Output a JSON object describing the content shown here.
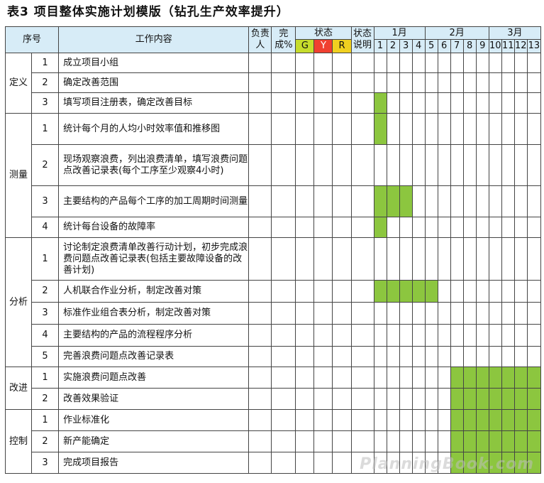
{
  "title": "表3 项目整体实施计划模版（钻孔生产效率提升）",
  "header": {
    "seq": "序号",
    "content": "工作内容",
    "owner": "负责人",
    "done": "完成%",
    "status": "状态",
    "status_g": "G",
    "status_y": "Y",
    "status_r": "R",
    "status_note": "状态说明",
    "months": [
      "1月",
      "2月",
      "3月"
    ],
    "weeks": [
      "1",
      "2",
      "3",
      "4",
      "5",
      "6",
      "7",
      "8",
      "9",
      "10",
      "11",
      "12",
      "13"
    ]
  },
  "phases": [
    {
      "name": "定义",
      "tasks": [
        {
          "no": "1",
          "text": "成立项目小组",
          "weeks": []
        },
        {
          "no": "2",
          "text": "确定改善范围",
          "weeks": []
        },
        {
          "no": "3",
          "text": "填写项目注册表，确定改善目标",
          "weeks": [
            1
          ]
        }
      ]
    },
    {
      "name": "测量",
      "tasks": [
        {
          "no": "1",
          "text": "统计每个月的人均小时效率值和推移图",
          "weeks": [
            1
          ]
        },
        {
          "no": "2",
          "text": "现场观察浪费，列出浪费清单，填写浪费问题点改善记录表(每个工序至少观察4小时)",
          "weeks": []
        },
        {
          "no": "3",
          "text": "主要结构的产品每个工序的加工周期时间测量",
          "weeks": [
            1,
            2,
            3
          ]
        },
        {
          "no": "4",
          "text": "统计每台设备的故障率",
          "weeks": [
            1
          ]
        }
      ]
    },
    {
      "name": "分析",
      "tasks": [
        {
          "no": "1",
          "text": "讨论制定浪费清单改善行动计划，初步完成浪费问题点改善记录表(包括主要故障设备的改善计划)",
          "weeks": []
        },
        {
          "no": "2",
          "text": "人机联合作业分析，制定改善对策",
          "weeks": [
            1,
            2,
            3,
            4,
            5
          ]
        },
        {
          "no": "3",
          "text": "标准作业组合表分析，制定改善对策",
          "weeks": []
        },
        {
          "no": "4",
          "text": "主要结构的产品的流程程序分析",
          "weeks": []
        },
        {
          "no": "5",
          "text": "完善浪费问题点改善记录表",
          "weeks": []
        }
      ]
    },
    {
      "name": "改进",
      "tasks": [
        {
          "no": "1",
          "text": "实施浪费问题点改善",
          "weeks": [
            7,
            8,
            9,
            10,
            11,
            12,
            13
          ]
        },
        {
          "no": "2",
          "text": "改善效果验证",
          "weeks": [
            7,
            8,
            9,
            10,
            11,
            12,
            13
          ]
        }
      ]
    },
    {
      "name": "控制",
      "tasks": [
        {
          "no": "1",
          "text": "作业标准化",
          "weeks": [
            7,
            8,
            9,
            10,
            11,
            12,
            13
          ]
        },
        {
          "no": "2",
          "text": "新产能确定",
          "weeks": [
            7,
            8,
            9,
            10,
            11,
            12,
            13
          ]
        },
        {
          "no": "3",
          "text": "完成项目报告",
          "weeks": [
            7,
            8,
            9,
            10,
            11,
            12,
            13
          ]
        }
      ]
    }
  ],
  "watermark": "PlanningBook.com",
  "colors": {
    "header_bg": "#d7ecf7",
    "progress_fill": "#8cc63f",
    "g": "#c6dc2c",
    "y": "#f0d020",
    "r": "#f04030"
  }
}
